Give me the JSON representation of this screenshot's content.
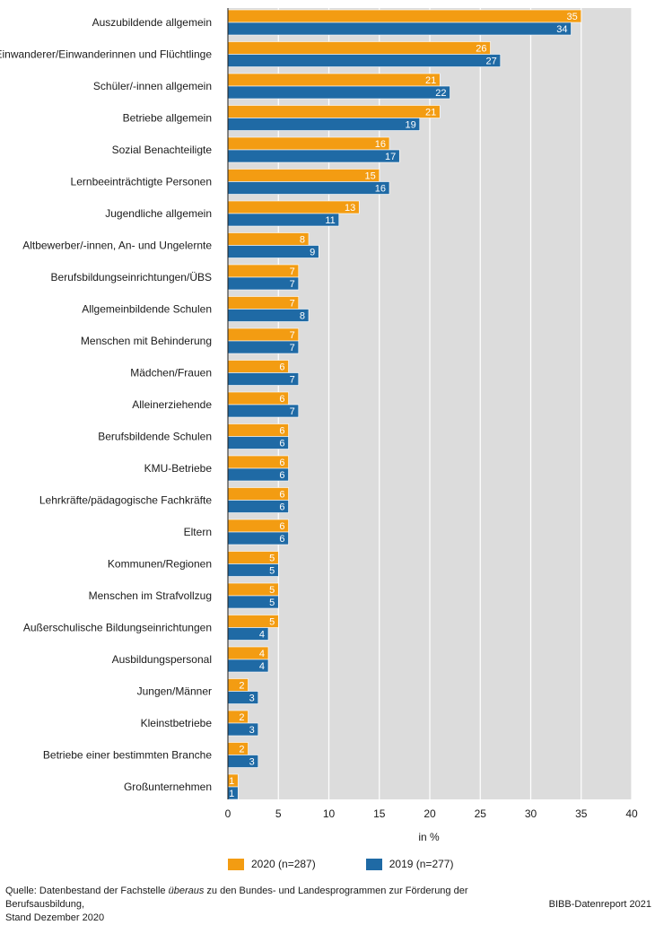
{
  "chart_data": {
    "type": "bar",
    "orientation": "horizontal",
    "xlabel": "in %",
    "xlim": [
      0,
      40
    ],
    "xticks": [
      0,
      5,
      10,
      15,
      20,
      25,
      30,
      35,
      40
    ],
    "grid": true,
    "legend_position": "bottom",
    "categories": [
      "Auszubildende allgemein",
      "Einwanderer/Einwanderinnen und Flüchtlinge",
      "Schüler/-innen allgemein",
      "Betriebe allgemein",
      "Sozial Benachteiligte",
      "Lernbeeinträchtigte Personen",
      "Jugendliche allgemein",
      "Altbewerber/-innen, An- und Ungelernte",
      "Berufsbildungseinrichtungen/ÜBS",
      "Allgemeinbildende Schulen",
      "Menschen mit Behinderung",
      "Mädchen/Frauen",
      "Alleinerziehende",
      "Berufsbildende Schulen",
      "KMU-Betriebe",
      "Lehrkräfte/pädagogische Fachkräfte",
      "Eltern",
      "Kommunen/Regionen",
      "Menschen im Strafvollzug",
      "Außerschulische Bildungseinrichtungen",
      "Ausbildungspersonal",
      "Jungen/Männer",
      "Kleinstbetriebe",
      "Betriebe einer bestimmten Branche",
      "Großunternehmen"
    ],
    "series": [
      {
        "name": "2020 (n=287)",
        "color": "#f39c12",
        "values": [
          35,
          26,
          21,
          21,
          16,
          15,
          13,
          8,
          7,
          7,
          7,
          6,
          6,
          6,
          6,
          6,
          6,
          5,
          5,
          5,
          4,
          2,
          2,
          2,
          1
        ]
      },
      {
        "name": "2019 (n=277)",
        "color": "#1f6aa5",
        "values": [
          34,
          27,
          22,
          19,
          17,
          16,
          11,
          9,
          7,
          8,
          7,
          7,
          7,
          6,
          6,
          6,
          6,
          5,
          5,
          4,
          4,
          3,
          3,
          3,
          1
        ]
      }
    ]
  },
  "footer": {
    "source_prefix": "Quelle: Datenbestand der Fachstelle ",
    "source_italic": "überaus",
    "source_suffix": " zu den Bundes- und Landesprogrammen zur Förderung der Berufsausbildung,",
    "source_line2": "Stand Dezember 2020",
    "credit": "BIBB-Datenreport 2021"
  },
  "colors": {
    "plot_background": "#dcdcdc",
    "gridline": "#ffffff"
  }
}
